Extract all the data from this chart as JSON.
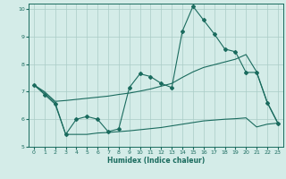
{
  "xlabel": "Humidex (Indice chaleur)",
  "bg_color": "#d4ece8",
  "grid_color": "#aaccc6",
  "line_color": "#1a6b5e",
  "xlim": [
    -0.5,
    23.5
  ],
  "ylim": [
    5,
    10.2
  ],
  "yticks": [
    5,
    6,
    7,
    8,
    9,
    10
  ],
  "xticks": [
    0,
    1,
    2,
    3,
    4,
    5,
    6,
    7,
    8,
    9,
    10,
    11,
    12,
    13,
    14,
    15,
    16,
    17,
    18,
    19,
    20,
    21,
    22,
    23
  ],
  "line1_x": [
    0,
    1,
    2,
    3,
    4,
    5,
    6,
    7,
    8,
    9,
    10,
    11,
    12,
    13,
    14,
    15,
    16,
    17,
    18,
    19,
    20,
    21,
    22,
    23
  ],
  "line1_y": [
    7.25,
    6.9,
    6.55,
    5.45,
    6.0,
    6.1,
    6.0,
    5.55,
    5.65,
    7.15,
    7.65,
    7.55,
    7.3,
    7.15,
    9.2,
    10.1,
    9.6,
    9.1,
    8.55,
    8.45,
    7.7,
    7.7,
    6.6,
    5.85
  ],
  "line2_x": [
    0,
    1,
    2,
    3,
    4,
    5,
    6,
    7,
    8,
    9,
    10,
    11,
    12,
    13,
    14,
    15,
    16,
    17,
    18,
    19,
    20,
    21,
    22,
    23
  ],
  "line2_y": [
    7.25,
    7.0,
    6.65,
    6.68,
    6.72,
    6.76,
    6.8,
    6.84,
    6.9,
    6.95,
    7.02,
    7.1,
    7.2,
    7.3,
    7.52,
    7.72,
    7.88,
    7.98,
    8.08,
    8.18,
    8.35,
    7.72,
    6.62,
    5.87
  ],
  "line3_x": [
    0,
    1,
    2,
    3,
    4,
    5,
    6,
    7,
    8,
    9,
    10,
    11,
    12,
    13,
    14,
    15,
    16,
    17,
    18,
    19,
    20,
    21,
    22,
    23
  ],
  "line3_y": [
    7.25,
    6.95,
    6.6,
    5.45,
    5.45,
    5.45,
    5.5,
    5.52,
    5.55,
    5.58,
    5.62,
    5.66,
    5.7,
    5.76,
    5.82,
    5.88,
    5.94,
    5.97,
    6.0,
    6.02,
    6.05,
    5.72,
    5.82,
    5.86
  ]
}
